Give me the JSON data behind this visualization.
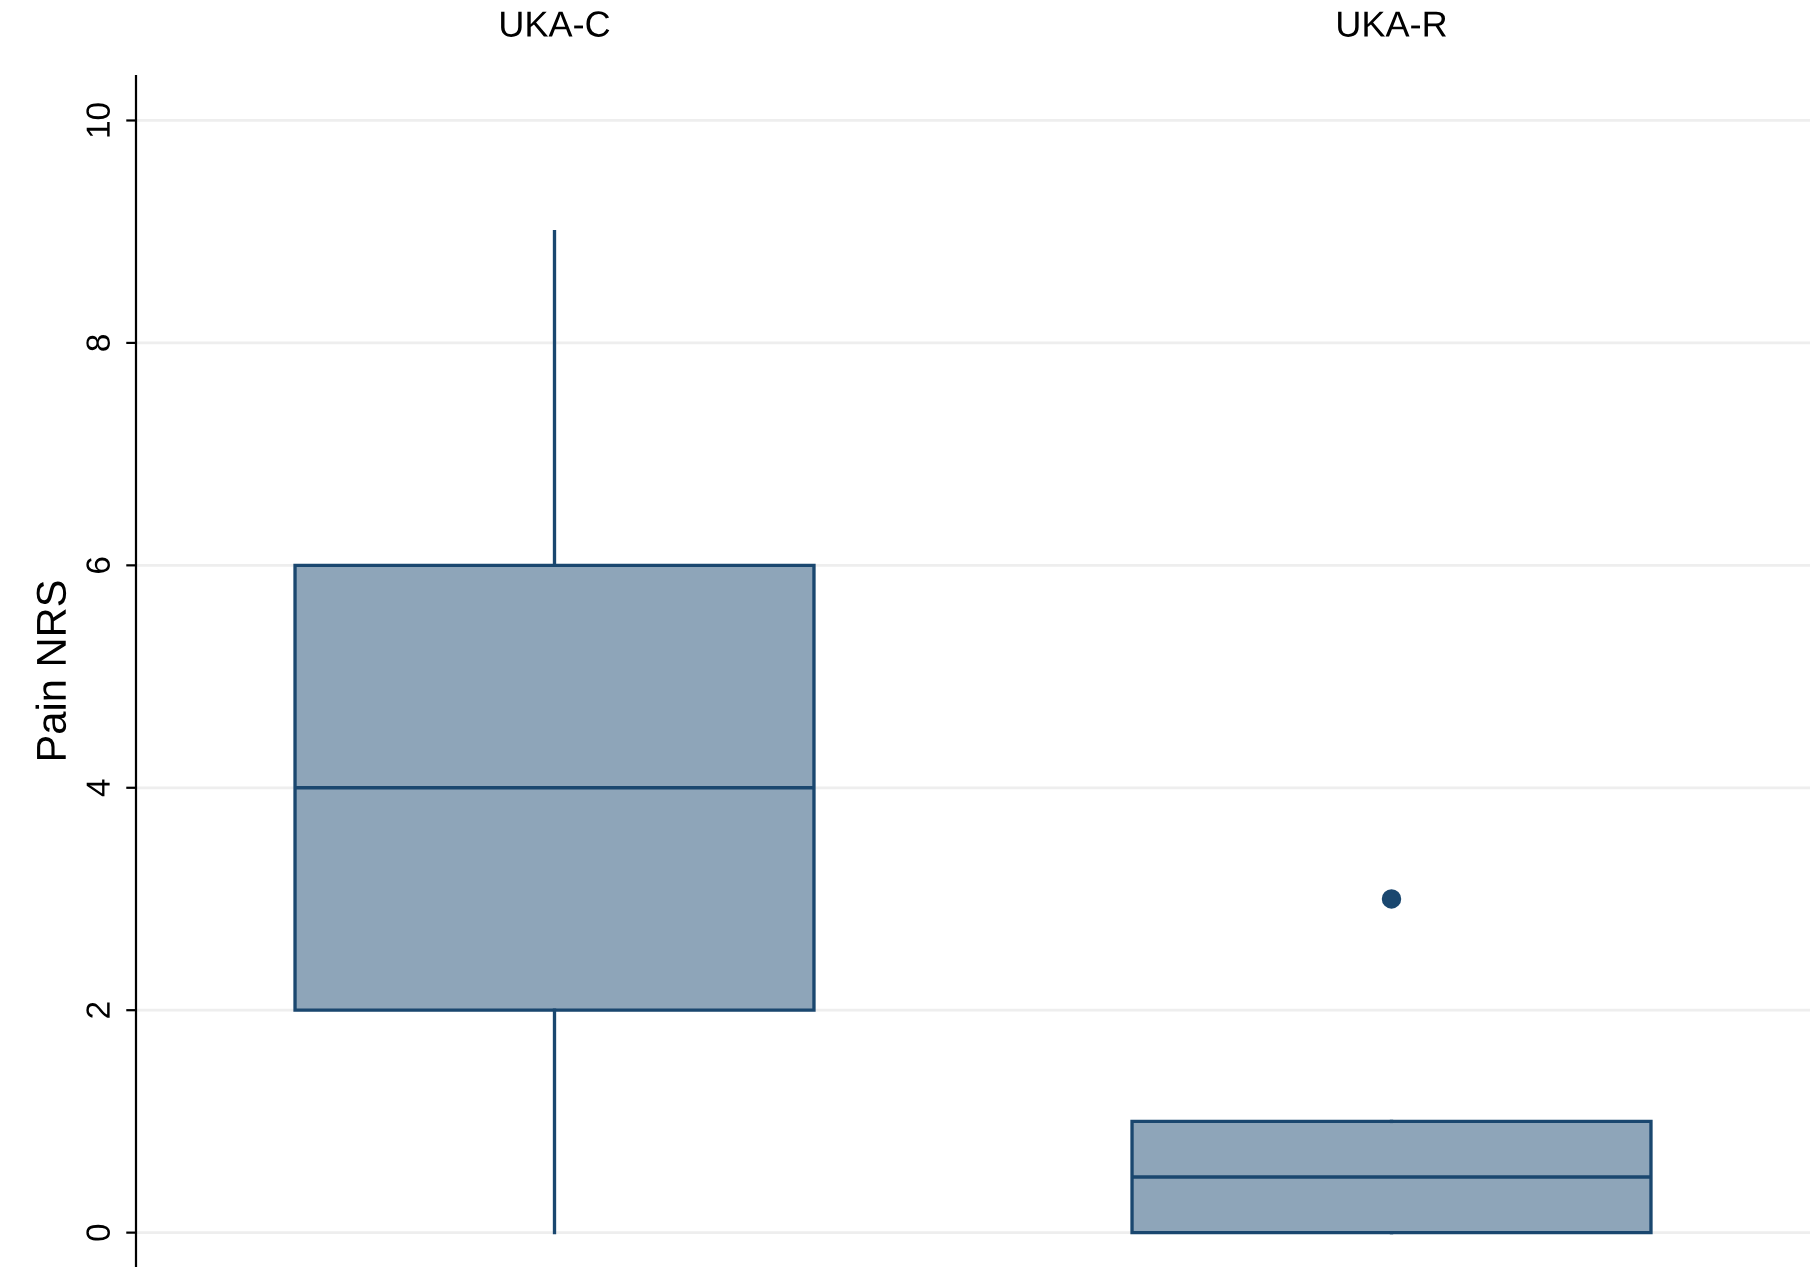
{
  "chart_data": {
    "type": "box",
    "ylabel": "Pain NRS",
    "categories": [
      "UKA-C",
      "UKA-R"
    ],
    "color": "#8ea5b9",
    "boxes": [
      {
        "low": 0,
        "q1": 2,
        "median": 4,
        "q3": 6,
        "high": 9
      },
      {
        "low": 0,
        "q1": 0,
        "median": 0.5,
        "q3": 1,
        "high": 1,
        "outliers": [
          3
        ]
      }
    ],
    "ylim": [
      -0.3,
      10.4
    ],
    "yticks": [
      0,
      2,
      4,
      6,
      8,
      10
    ],
    "grid": "y"
  }
}
